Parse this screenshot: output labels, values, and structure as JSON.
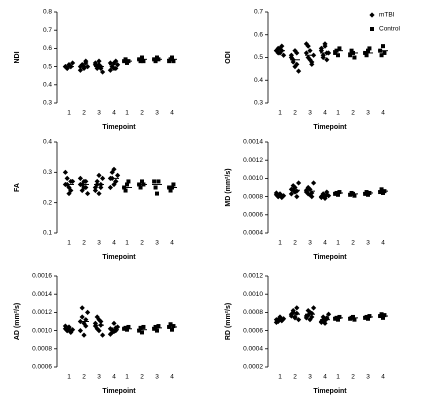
{
  "chart_data": [
    {
      "type": "strip",
      "ylabel": "NDI",
      "xlabel": "Timepoint",
      "categories": [
        "1",
        "2",
        "3",
        "4"
      ],
      "ylim": [
        0.3,
        0.8
      ],
      "yticks": [
        0.3,
        0.4,
        0.5,
        0.6,
        0.7,
        0.8
      ],
      "series": [
        {
          "color": "#000000",
          "marker": "diamond",
          "values": [
            [
              0.5,
              0.49,
              0.51,
              0.5,
              0.52,
              0.5,
              0.49,
              0.51,
              0.5
            ],
            [
              0.5,
              0.51,
              0.49,
              0.52,
              0.5,
              0.48,
              0.51,
              0.5,
              0.53
            ],
            [
              0.51,
              0.49,
              0.53,
              0.5,
              0.47,
              0.52,
              0.5,
              0.51,
              0.49
            ],
            [
              0.52,
              0.5,
              0.49,
              0.53,
              0.51,
              0.48,
              0.5,
              0.52,
              0.49
            ]
          ],
          "means": [
            0.5,
            0.5,
            0.5,
            0.51
          ]
        },
        {
          "color": "#000000",
          "marker": "square",
          "values": [
            [
              0.53,
              0.54,
              0.52,
              0.53
            ],
            [
              0.54,
              0.53,
              0.55,
              0.53
            ],
            [
              0.54,
              0.53,
              0.55,
              0.54
            ],
            [
              0.53,
              0.54,
              0.55,
              0.53
            ]
          ],
          "means": [
            0.53,
            0.54,
            0.54,
            0.54
          ]
        }
      ]
    },
    {
      "type": "strip",
      "ylabel": "ODI",
      "xlabel": "Timepoint",
      "categories": [
        "1",
        "2",
        "3",
        "4"
      ],
      "ylim": [
        0.3,
        0.7
      ],
      "yticks": [
        0.3,
        0.4,
        0.5,
        0.6,
        0.7
      ],
      "legend": "upper right",
      "series": [
        {
          "name": "mTBI",
          "color": "#000000",
          "marker": "diamond",
          "values": [
            [
              0.53,
              0.54,
              0.52,
              0.55,
              0.51,
              0.53,
              0.52,
              0.54,
              0.53
            ],
            [
              0.5,
              0.48,
              0.46,
              0.52,
              0.44,
              0.51,
              0.49,
              0.53,
              0.47
            ],
            [
              0.52,
              0.55,
              0.49,
              0.47,
              0.51,
              0.56,
              0.5,
              0.53,
              0.48
            ],
            [
              0.53,
              0.51,
              0.55,
              0.49,
              0.52,
              0.54,
              0.5,
              0.56,
              0.52
            ]
          ],
          "means": [
            0.53,
            0.49,
            0.51,
            0.52
          ]
        },
        {
          "name": "Control",
          "color": "#000000",
          "marker": "square",
          "values": [
            [
              0.52,
              0.53,
              0.51,
              0.54
            ],
            [
              0.51,
              0.53,
              0.52,
              0.5
            ],
            [
              0.52,
              0.51,
              0.53,
              0.54
            ],
            [
              0.53,
              0.51,
              0.55,
              0.52
            ]
          ],
          "means": [
            0.53,
            0.52,
            0.52,
            0.53
          ]
        }
      ]
    },
    {
      "type": "strip",
      "ylabel": "FA",
      "xlabel": "Timepoint",
      "categories": [
        "1",
        "2",
        "3",
        "4"
      ],
      "ylim": [
        0.1,
        0.4
      ],
      "yticks": [
        0.1,
        0.2,
        0.3,
        0.4
      ],
      "series": [
        {
          "color": "#000000",
          "marker": "diamond",
          "values": [
            [
              0.26,
              0.28,
              0.25,
              0.24,
              0.27,
              0.3,
              0.26,
              0.23,
              0.27
            ],
            [
              0.26,
              0.24,
              0.27,
              0.25,
              0.23,
              0.28,
              0.26,
              0.25,
              0.27
            ],
            [
              0.25,
              0.27,
              0.23,
              0.26,
              0.28,
              0.24,
              0.26,
              0.29,
              0.25
            ],
            [
              0.28,
              0.3,
              0.26,
              0.27,
              0.29,
              0.25,
              0.28,
              0.31,
              0.27
            ]
          ],
          "means": [
            0.26,
            0.26,
            0.26,
            0.28
          ]
        },
        {
          "color": "#000000",
          "marker": "square",
          "values": [
            [
              0.25,
              0.24,
              0.26,
              0.27
            ],
            [
              0.26,
              0.25,
              0.27,
              0.26
            ],
            [
              0.27,
              0.25,
              0.23,
              0.27
            ],
            [
              0.25,
              0.24,
              0.25,
              0.26
            ]
          ],
          "means": [
            0.25,
            0.26,
            0.26,
            0.25
          ]
        }
      ]
    },
    {
      "type": "strip",
      "ylabel": "MD (mm²/s)",
      "xlabel": "Timepoint",
      "categories": [
        "1",
        "2",
        "3",
        "4"
      ],
      "ylim": [
        0.0004,
        0.0014
      ],
      "yticks": [
        0.0004,
        0.0006,
        0.0008,
        {
          "value": 0.001,
          "label": "0.0010"
        },
        0.0012,
        0.0014
      ],
      "series": [
        {
          "color": "#000000",
          "marker": "diamond",
          "values": [
            [
              0.00082,
              0.0008,
              0.00083,
              0.00079,
              0.00081,
              0.00084,
              0.0008,
              0.00082,
              0.00081
            ],
            [
              0.00088,
              0.00092,
              0.00085,
              0.0008,
              0.00095,
              0.00083,
              0.00087,
              0.0009,
              0.00086
            ],
            [
              0.00085,
              0.0009,
              0.00082,
              0.0008,
              0.00095,
              0.00087,
              0.00083,
              0.00088,
              0.00084
            ],
            [
              0.0008,
              0.00082,
              0.00078,
              0.00085,
              0.00081,
              0.00079,
              0.00083,
              0.0008,
              0.00082
            ]
          ],
          "means": [
            0.00081,
            0.00087,
            0.00086,
            0.00081
          ]
        },
        {
          "color": "#000000",
          "marker": "square",
          "values": [
            [
              0.00083,
              0.00084,
              0.00082,
              0.00085
            ],
            [
              0.00082,
              0.00084,
              0.00083,
              0.00081
            ],
            [
              0.00083,
              0.00085,
              0.00082,
              0.00084
            ],
            [
              0.00085,
              0.00088,
              0.00084,
              0.00086
            ]
          ],
          "means": [
            0.00084,
            0.00083,
            0.00084,
            0.00086
          ]
        }
      ]
    },
    {
      "type": "strip",
      "ylabel": "AD (mm²/s)",
      "xlabel": "Timepoint",
      "categories": [
        "1",
        "2",
        "3",
        "4"
      ],
      "ylim": [
        0.0006,
        0.0016
      ],
      "yticks": [
        0.0006,
        0.0008,
        {
          "value": 0.001,
          "label": "0.0010"
        },
        0.0012,
        0.0014,
        0.0016
      ],
      "series": [
        {
          "color": "#000000",
          "marker": "diamond",
          "values": [
            [
              0.00102,
              0.001,
              0.00104,
              0.00099,
              0.00101,
              0.00105,
              0.001,
              0.00103,
              0.00098
            ],
            [
              0.0011,
              0.00125,
              0.00095,
              0.00105,
              0.0012,
              0.001,
              0.00115,
              0.00108,
              0.00112
            ],
            [
              0.00105,
              0.00115,
              0.001,
              0.0011,
              0.00095,
              0.00108,
              0.00102,
              0.00112,
              0.00106
            ],
            [
              0.00102,
              0.00098,
              0.00108,
              0.001,
              0.00104,
              0.00096,
              0.00101,
              0.00099,
              0.00103
            ]
          ],
          "means": [
            0.00101,
            0.0011,
            0.00106,
            0.00101
          ]
        },
        {
          "color": "#000000",
          "marker": "square",
          "values": [
            [
              0.00102,
              0.00103,
              0.00101,
              0.00104
            ],
            [
              0.001,
              0.00103,
              0.00098,
              0.00104
            ],
            [
              0.00102,
              0.00104,
              0.001,
              0.00105
            ],
            [
              0.00104,
              0.00107,
              0.00101,
              0.00105
            ]
          ],
          "means": [
            0.00102,
            0.00101,
            0.00103,
            0.00104
          ]
        }
      ]
    },
    {
      "type": "strip",
      "ylabel": "RD (mm²/s)",
      "xlabel": "Timepoint",
      "categories": [
        "1",
        "2",
        "3",
        "4"
      ],
      "ylim": [
        0.0002,
        0.0012
      ],
      "yticks": [
        0.0002,
        0.0004,
        0.0006,
        0.0008,
        {
          "value": 0.001,
          "label": "0.0010"
        },
        0.0012
      ],
      "series": [
        {
          "color": "#000000",
          "marker": "diamond",
          "values": [
            [
              0.00072,
              0.0007,
              0.00074,
              0.00071,
              0.00073,
              0.00069,
              0.00072,
              0.00075,
              0.00071
            ],
            [
              0.00078,
              0.00082,
              0.00074,
              0.00085,
              0.00072,
              0.00076,
              0.0008,
              0.00075,
              0.00079
            ],
            [
              0.00076,
              0.00082,
              0.00072,
              0.00079,
              0.00085,
              0.00074,
              0.00077,
              0.0008,
              0.00075
            ],
            [
              0.0007,
              0.00075,
              0.00068,
              0.00073,
              0.00078,
              0.00069,
              0.00072,
              0.00071,
              0.00074
            ]
          ],
          "means": [
            0.00072,
            0.00078,
            0.00078,
            0.00072
          ]
        },
        {
          "color": "#000000",
          "marker": "square",
          "values": [
            [
              0.00073,
              0.00074,
              0.00072,
              0.00075
            ],
            [
              0.00073,
              0.00074,
              0.00075,
              0.00072
            ],
            [
              0.00074,
              0.00075,
              0.00073,
              0.00076
            ],
            [
              0.00076,
              0.00078,
              0.00074,
              0.00077
            ]
          ],
          "means": [
            0.00074,
            0.00074,
            0.00075,
            0.00076
          ]
        }
      ]
    }
  ]
}
